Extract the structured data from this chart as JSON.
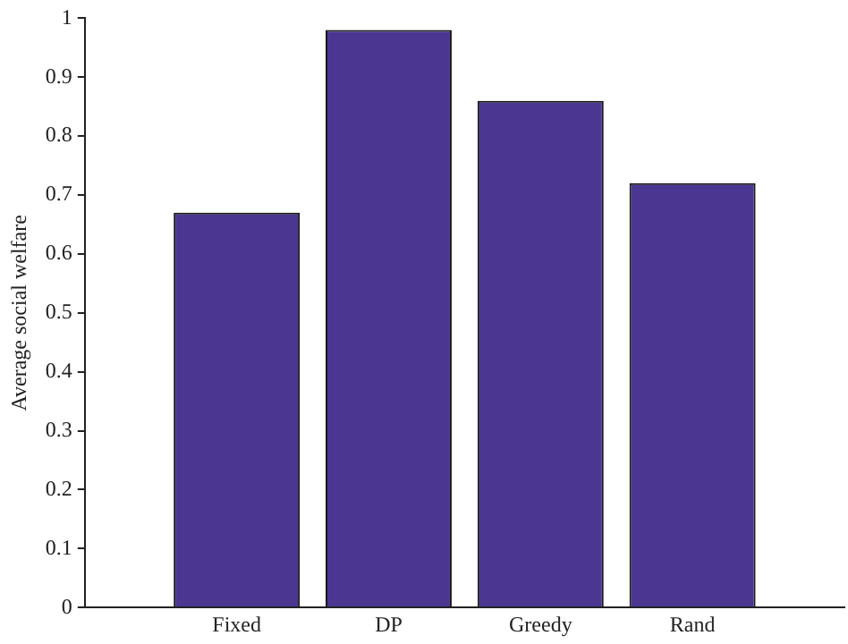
{
  "chart_data": {
    "type": "bar",
    "ylabel": "Average social welfare",
    "categories": [
      "Fixed",
      "DP",
      "Greedy",
      "Rand"
    ],
    "values": [
      0.67,
      0.98,
      0.86,
      0.72
    ],
    "color": "#4b3791",
    "ylim": [
      0,
      1
    ],
    "yticks": [
      0,
      0.1,
      0.2,
      0.3,
      0.4,
      0.5,
      0.6,
      0.7,
      0.8,
      0.9,
      1
    ],
    "grid": false,
    "legend": false
  }
}
